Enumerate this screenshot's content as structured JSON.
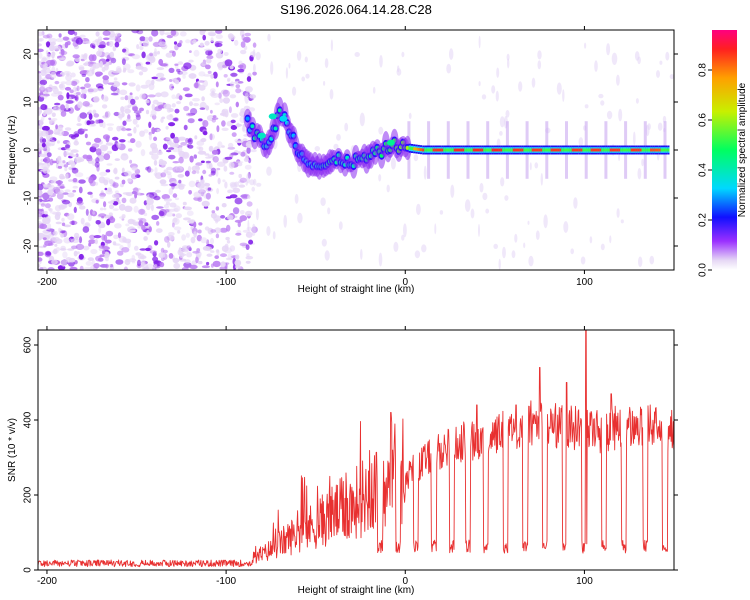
{
  "title": "S196.2026.064.14.28.C28",
  "chart_data": [
    {
      "type": "heatmap",
      "xlabel": "Height of straight line (km)",
      "ylabel": "Frequency (Hz)",
      "xlim": [
        -205,
        150
      ],
      "ylim": [
        -25,
        25
      ],
      "xticks": [
        -200,
        -100,
        0,
        100
      ],
      "yticks": [
        -20,
        -10,
        0,
        10,
        20
      ],
      "colorbar": {
        "label": "Normalized spectral amplitude",
        "range": [
          0.0,
          0.96
        ],
        "ticks": [
          0.0,
          0.2,
          0.4,
          0.6,
          0.8
        ],
        "tick_labels": [
          "0.0",
          "0.2",
          "0.4",
          "0.6",
          "0.8"
        ]
      },
      "noise_region": {
        "x": [
          -205,
          -90
        ],
        "freq": [
          -25,
          25
        ],
        "amplitude": 0.15
      },
      "signal_track": [
        {
          "x": -88,
          "freq": 6,
          "amplitude": 0.3
        },
        {
          "x": -84,
          "freq": 3,
          "amplitude": 0.45
        },
        {
          "x": -80,
          "freq": 2,
          "amplitude": 0.4
        },
        {
          "x": -76,
          "freq": 1,
          "amplitude": 0.35
        },
        {
          "x": -70,
          "freq": 8,
          "amplitude": 0.45
        },
        {
          "x": -66,
          "freq": 6,
          "amplitude": 0.35
        },
        {
          "x": -60,
          "freq": 0,
          "amplitude": 0.3
        },
        {
          "x": -54,
          "freq": -2,
          "amplitude": 0.35
        },
        {
          "x": -48,
          "freq": -3.5,
          "amplitude": 0.4
        },
        {
          "x": -42,
          "freq": -3,
          "amplitude": 0.45
        },
        {
          "x": -36,
          "freq": -2,
          "amplitude": 0.4
        },
        {
          "x": -30,
          "freq": -2.5,
          "amplitude": 0.4
        },
        {
          "x": -24,
          "freq": -2,
          "amplitude": 0.45
        },
        {
          "x": -18,
          "freq": -1,
          "amplitude": 0.45
        },
        {
          "x": -12,
          "freq": 0,
          "amplitude": 0.5
        },
        {
          "x": -6,
          "freq": 1,
          "amplitude": 0.55
        },
        {
          "x": 0,
          "freq": 0.5,
          "amplitude": 0.6
        },
        {
          "x": 10,
          "freq": 0,
          "amplitude": 0.9
        },
        {
          "x": 30,
          "freq": 0,
          "amplitude": 0.92
        },
        {
          "x": 50,
          "freq": 0,
          "amplitude": 0.92
        },
        {
          "x": 70,
          "freq": 0,
          "amplitude": 0.9
        },
        {
          "x": 90,
          "freq": 0,
          "amplitude": 0.9
        },
        {
          "x": 110,
          "freq": 0,
          "amplitude": 0.9
        },
        {
          "x": 130,
          "freq": 0,
          "amplitude": 0.9
        },
        {
          "x": 148,
          "freq": 0,
          "amplitude": 0.85
        }
      ]
    },
    {
      "type": "line",
      "xlabel": "Height of straight line (km)",
      "ylabel": "SNR (10 * v/v)",
      "xlim": [
        -205,
        150
      ],
      "ylim": [
        0,
        640
      ],
      "xticks": [
        -200,
        -100,
        0,
        100
      ],
      "yticks": [
        0,
        200,
        400,
        600
      ],
      "series": [
        {
          "name": "SNR",
          "color": "#e83030",
          "x": [
            -205,
            -180,
            -150,
            -120,
            -100,
            -90,
            -80,
            -70,
            -60,
            -50,
            -40,
            -30,
            -20,
            -10,
            -5,
            0,
            10,
            20,
            30,
            40,
            50,
            60,
            70,
            80,
            90,
            100,
            110,
            120,
            130,
            140,
            150
          ],
          "values": [
            20,
            20,
            20,
            20,
            20,
            22,
            40,
            70,
            100,
            120,
            150,
            170,
            210,
            250,
            270,
            250,
            290,
            320,
            340,
            350,
            360,
            380,
            390,
            390,
            380,
            380,
            370,
            380,
            380,
            380,
            370
          ],
          "dropouts": [
            -14,
            -4,
            6,
            16,
            26,
            35,
            45,
            56,
            67,
            78,
            89,
            100,
            111,
            122,
            134,
            145
          ],
          "dropout_level": 45,
          "spikes": [
            [
              -8,
              420
            ],
            [
              40,
              440
            ],
            [
              62,
              440
            ],
            [
              75,
              540
            ],
            [
              90,
              500
            ],
            [
              101,
              640
            ],
            [
              115,
              470
            ]
          ]
        }
      ]
    }
  ]
}
